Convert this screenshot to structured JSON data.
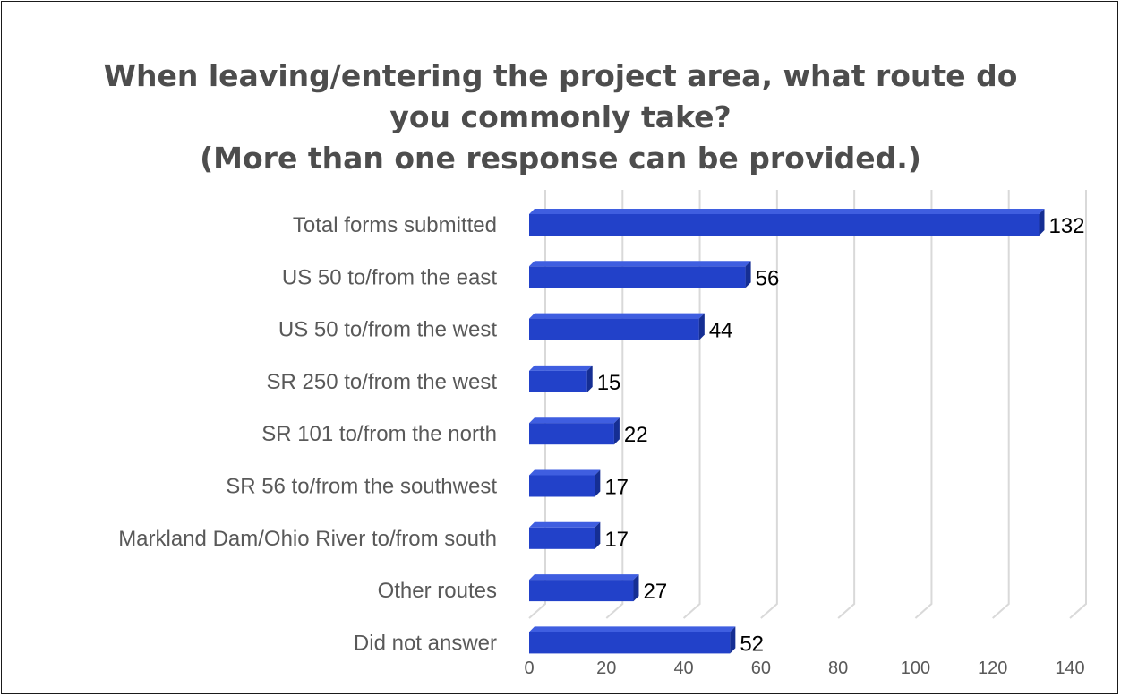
{
  "colors": {
    "bar_front": "#2241c9",
    "bar_top": "#3f5ee0",
    "bar_side": "#152e93",
    "grid": "#d9d9d9",
    "border": "#1a1a1a"
  },
  "chart_data": {
    "type": "bar",
    "orientation": "horizontal",
    "title_lines": [
      "When leaving/entering the project area, what route do",
      "you commonly take?",
      "(More than one response can be provided.)"
    ],
    "categories": [
      "Total forms submitted",
      "US 50 to/from the east",
      "US 50 to/from the west",
      "SR 250 to/from the west",
      "SR 101 to/from the north",
      "SR 56 to/from the southwest",
      "Markland Dam/Ohio River to/from south",
      "Other routes",
      "Did not answer"
    ],
    "values": [
      132,
      56,
      44,
      15,
      22,
      17,
      17,
      27,
      52
    ],
    "data_labels": [
      "132",
      "56",
      "44",
      "15",
      "22",
      "17",
      "17",
      "27",
      "52"
    ],
    "xlim": [
      0,
      140
    ],
    "xticks": [
      0,
      20,
      40,
      60,
      80,
      100,
      120,
      140
    ],
    "xtick_labels": [
      "0",
      "20",
      "40",
      "60",
      "80",
      "100",
      "120",
      "140"
    ],
    "gridlines": "vertical",
    "style": "3d",
    "legend": "none",
    "xlabel": "",
    "ylabel": ""
  }
}
